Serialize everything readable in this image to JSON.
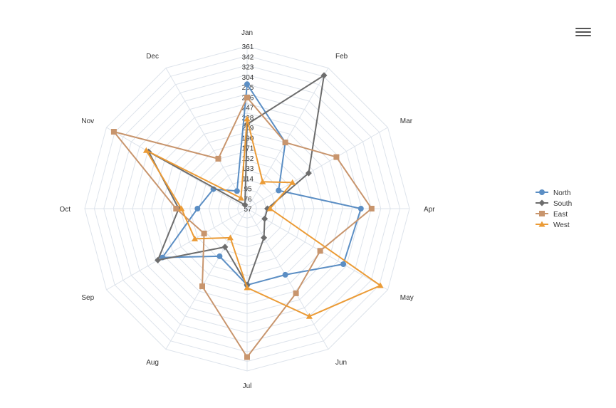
{
  "toolbar": {
    "menu_icon": "hamburger-menu-icon"
  },
  "chart_data": {
    "type": "radar",
    "categories": [
      "Jan",
      "Feb",
      "Mar",
      "Apr",
      "May",
      "Jun",
      "Jul",
      "Aug",
      "Sep",
      "Oct",
      "Nov",
      "Dec"
    ],
    "radial_ticks": [
      "57",
      "76",
      "95",
      "114",
      "133",
      "152",
      "171",
      "190",
      "209",
      "228",
      "247",
      "266",
      "285",
      "304",
      "323",
      "342",
      "361"
    ],
    "rlim": [
      57,
      361
    ],
    "grid": true,
    "legend_position": "right",
    "series": [
      {
        "name": "North",
        "color": "#5b8ec4",
        "marker": "circle",
        "values": [
          290,
          200,
          125,
          270,
          265,
          200,
          200,
          160,
          240,
          150,
          130,
          95
        ]
      },
      {
        "name": "South",
        "color": "#6d6d6d",
        "marker": "diamond",
        "values": [
          215,
          345,
          190,
          95,
          95,
          120,
          200,
          140,
          250,
          185,
          270,
          65
        ]
      },
      {
        "name": "East",
        "color": "#c8956d",
        "marker": "square",
        "values": [
          265,
          200,
          250,
          290,
          215,
          240,
          335,
          225,
          150,
          190,
          345,
          165
        ]
      },
      {
        "name": "West",
        "color": "#eb9b36",
        "marker": "triangle",
        "values": [
          225,
          115,
          155,
          100,
          345,
          290,
          205,
          120,
          170,
          180,
          275,
          80
        ]
      }
    ]
  }
}
